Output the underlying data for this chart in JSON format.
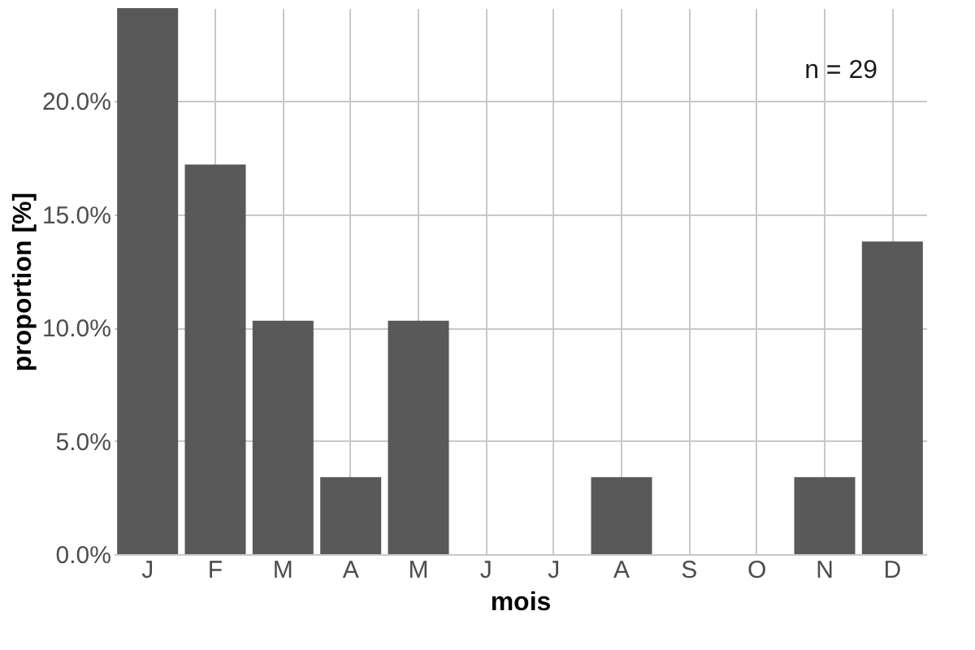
{
  "chart_data": {
    "type": "bar",
    "xlabel": "mois",
    "ylabel": "proportion [%]",
    "categories": [
      "J",
      "F",
      "M",
      "A",
      "M",
      "J",
      "J",
      "A",
      "S",
      "O",
      "N",
      "D"
    ],
    "values": [
      24.1,
      17.2,
      10.3,
      3.4,
      10.3,
      0,
      0,
      3.4,
      0,
      0,
      3.4,
      13.8
    ],
    "color": "#595959",
    "ylim": [
      0,
      24.1
    ],
    "yticks": [
      {
        "value": 0,
        "label": "0.0%"
      },
      {
        "value": 5,
        "label": "5.0%"
      },
      {
        "value": 10,
        "label": "10.0%"
      },
      {
        "value": 15,
        "label": "15.0%"
      },
      {
        "value": 20,
        "label": "20.0%"
      }
    ],
    "grid": true,
    "annotations": [
      "n = 29"
    ]
  }
}
